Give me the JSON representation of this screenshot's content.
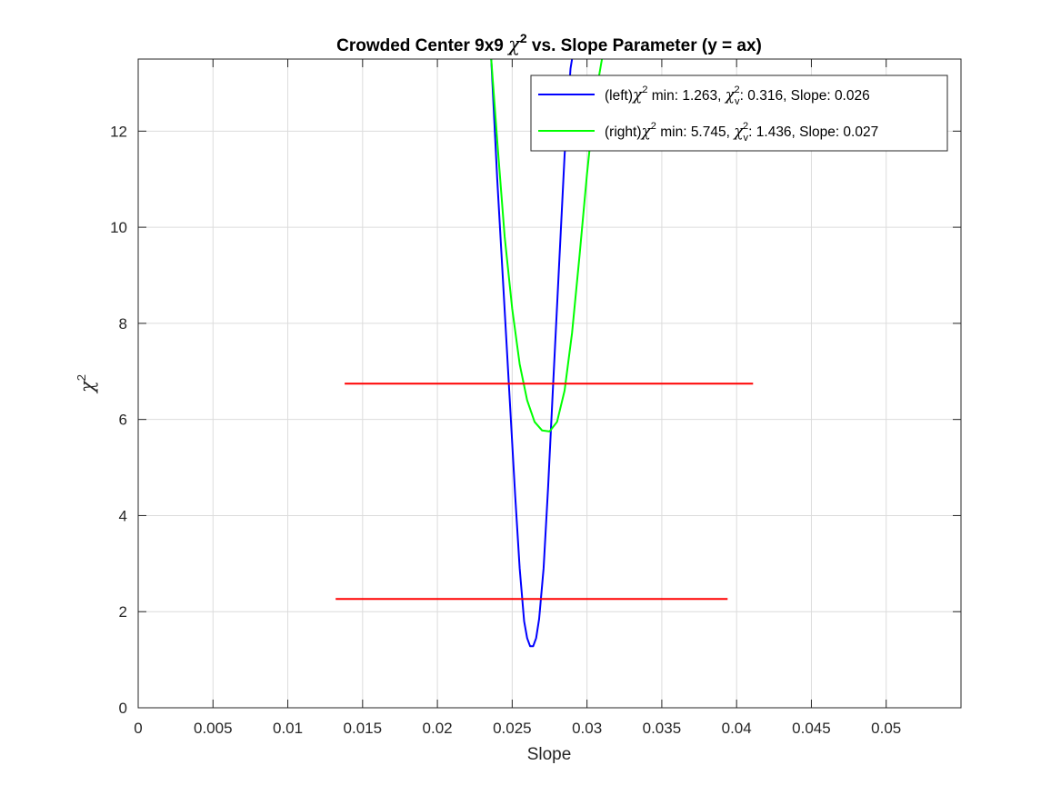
{
  "chart_data": {
    "type": "line",
    "title": {
      "pre": "Crowded Center 9x9 ",
      "chi": "χ",
      "sup": "2",
      "post": " vs. Slope Parameter (y = ax)"
    },
    "xlabel": "Slope",
    "ylabel": {
      "chi": "χ",
      "sup": "2"
    },
    "xlim": [
      0,
      0.055
    ],
    "ylim": [
      0,
      13.5
    ],
    "xticks": [
      0,
      0.005,
      0.01,
      0.015,
      0.02,
      0.025,
      0.03,
      0.035,
      0.04,
      0.045,
      0.05
    ],
    "xtick_labels": [
      "0",
      "0.005",
      "0.01",
      "0.015",
      "0.02",
      "0.025",
      "0.03",
      "0.035",
      "0.04",
      "0.045",
      "0.05"
    ],
    "yticks": [
      0,
      2,
      4,
      6,
      8,
      10,
      12
    ],
    "ytick_labels": [
      "0",
      "2",
      "4",
      "6",
      "8",
      "10",
      "12"
    ],
    "grid": true,
    "legend_position": "top-right",
    "series": [
      {
        "id": "left",
        "color": "#0000ff",
        "legend": {
          "p1": "(left)",
          "chi": "χ",
          "sup": "2",
          "p2": " min: 1.263, ",
          "chi2": "χ",
          "sub2": "v",
          "sup2": "2",
          "p3": ": 0.316, Slope: 0.026"
        },
        "x": [
          0.0236,
          0.024,
          0.0244,
          0.0248,
          0.0252,
          0.0255,
          0.0258,
          0.026,
          0.0262,
          0.0264,
          0.0266,
          0.0268,
          0.0271,
          0.0274,
          0.0277,
          0.0281,
          0.0285,
          0.0289,
          0.029
        ],
        "y": [
          13.5,
          11.0,
          8.8,
          6.6,
          4.4,
          2.9,
          1.8,
          1.45,
          1.28,
          1.28,
          1.45,
          1.85,
          2.9,
          4.6,
          6.5,
          9.0,
          11.5,
          13.3,
          13.5
        ]
      },
      {
        "id": "right",
        "color": "#00ff00",
        "legend": {
          "p1": "(right)",
          "chi": "χ",
          "sup": "2",
          "p2": " min: 5.745, ",
          "chi2": "χ",
          "sub2": "v",
          "sup2": "2",
          "p3": ": 1.436, Slope: 0.027"
        },
        "x": [
          0.0236,
          0.024,
          0.0245,
          0.025,
          0.0255,
          0.026,
          0.0265,
          0.027,
          0.0275,
          0.028,
          0.0285,
          0.029,
          0.0295,
          0.03,
          0.0305,
          0.031
        ],
        "y": [
          13.5,
          11.8,
          9.8,
          8.3,
          7.15,
          6.4,
          5.95,
          5.77,
          5.75,
          5.95,
          6.6,
          7.8,
          9.4,
          11.1,
          12.6,
          13.5
        ]
      },
      {
        "id": "threshold-upper",
        "color": "#ff0000",
        "x": [
          0.0138,
          0.0411
        ],
        "y": [
          6.745,
          6.745
        ]
      },
      {
        "id": "threshold-lower",
        "color": "#ff0000",
        "x": [
          0.0132,
          0.0394
        ],
        "y": [
          2.263,
          2.263
        ]
      }
    ]
  }
}
